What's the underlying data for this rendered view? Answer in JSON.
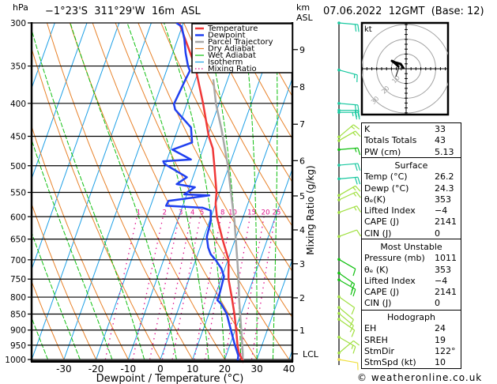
{
  "header": {
    "pressure_unit": "hPa",
    "location": "−1°23'S  311°29'W  16m  ASL",
    "height_unit_line1": "km",
    "height_unit_line2": "ASL",
    "datetime": "07.06.2022  12GMT  (Base: 12)"
  },
  "colors": {
    "temperature": "#f03838",
    "dewpoint": "#2040f0",
    "parcel": "#a8a8a8",
    "dry_adiabat": "#e8822a",
    "wet_adiabat": "#10c010",
    "isotherm": "#1ea0e6",
    "mixing_ratio": "#e0108c",
    "teal": "#18c8a0",
    "yellowgreen": "#a0e040",
    "green": "#10c010",
    "yellow": "#f0e040",
    "hodo_ring": "#a0a0a0"
  },
  "chart_data": {
    "type": "line",
    "subtype": "skew-T log-P",
    "title": "−1°23'S  311°29'W  16m  ASL",
    "xlabel": "Dewpoint / Temperature (°C)",
    "ylabel": "hPa",
    "y2label": "Mixing Ratio (g/kg)",
    "xlim": [
      -40,
      41
    ],
    "ylim": [
      1000,
      300
    ],
    "grid": true,
    "x_ticks": [
      -30,
      -20,
      -10,
      0,
      10,
      20,
      30,
      40
    ],
    "pressure_levels": [
      300,
      350,
      400,
      450,
      500,
      550,
      600,
      650,
      700,
      750,
      800,
      850,
      900,
      950,
      1000
    ],
    "height_ticks": [
      {
        "label": "9",
        "pressure": 330
      },
      {
        "label": "8",
        "pressure": 377
      },
      {
        "label": "7",
        "pressure": 431
      },
      {
        "label": "6",
        "pressure": 491
      },
      {
        "label": "5",
        "pressure": 557
      },
      {
        "label": "4",
        "pressure": 629
      },
      {
        "label": "3",
        "pressure": 710
      },
      {
        "label": "2",
        "pressure": 802
      },
      {
        "label": "1",
        "pressure": 901
      },
      {
        "label": "LCL",
        "pressure": 980
      }
    ],
    "legend_position": "top-right",
    "legend": [
      {
        "label": "Temperature",
        "key": "temperature",
        "style": "solid-thick"
      },
      {
        "label": "Dewpoint",
        "key": "dewpoint",
        "style": "solid-thick"
      },
      {
        "label": "Parcel Trajectory",
        "key": "parcel",
        "style": "solid-thick"
      },
      {
        "label": "Dry Adiabat",
        "key": "dry_adiabat",
        "style": "solid"
      },
      {
        "label": "Wet Adiabat",
        "key": "wet_adiabat",
        "style": "solid"
      },
      {
        "label": "Isotherm",
        "key": "isotherm",
        "style": "solid"
      },
      {
        "label": "Mixing Ratio",
        "key": "mixing_ratio",
        "style": "dotted"
      }
    ],
    "series": [
      {
        "name": "Temperature",
        "key": "temperature",
        "points": [
          [
            1011,
            26.2
          ],
          [
            1000,
            25.4
          ],
          [
            975,
            23.6
          ],
          [
            950,
            22.4
          ],
          [
            900,
            20.3
          ],
          [
            850,
            18.0
          ],
          [
            800,
            15.3
          ],
          [
            750,
            12.3
          ],
          [
            700,
            10.2
          ],
          [
            650,
            6.0
          ],
          [
            600,
            1.8
          ],
          [
            573,
            0.0
          ],
          [
            550,
            -1.0
          ],
          [
            500,
            -4.6
          ],
          [
            470,
            -7.0
          ],
          [
            450,
            -9.6
          ],
          [
            400,
            -15.0
          ],
          [
            350,
            -21.6
          ],
          [
            300,
            -31.3
          ]
        ]
      },
      {
        "name": "Dewpoint",
        "key": "dewpoint",
        "points": [
          [
            1011,
            24.3
          ],
          [
            986,
            23.8
          ],
          [
            945,
            21.3
          ],
          [
            897,
            18.5
          ],
          [
            848,
            15.5
          ],
          [
            820,
            12.8
          ],
          [
            809,
            11.2
          ],
          [
            786,
            11.1
          ],
          [
            743,
            10.6
          ],
          [
            722,
            8.9
          ],
          [
            702,
            6.4
          ],
          [
            686,
            4.0
          ],
          [
            670,
            2.5
          ],
          [
            645,
            0.9
          ],
          [
            610,
            0.4
          ],
          [
            587,
            -0.8
          ],
          [
            581,
            -3.6
          ],
          [
            577,
            -15.2
          ],
          [
            567,
            -15.0
          ],
          [
            556,
            -2.9
          ],
          [
            554,
            -10.8
          ],
          [
            540,
            -8.3
          ],
          [
            534,
            -14.3
          ],
          [
            521,
            -11.9
          ],
          [
            497,
            -20.3
          ],
          [
            492,
            -21.0
          ],
          [
            489,
            -12.6
          ],
          [
            472,
            -19.4
          ],
          [
            460,
            -14.1
          ],
          [
            436,
            -16.1
          ],
          [
            409,
            -23.0
          ],
          [
            401,
            -24.0
          ],
          [
            367,
            -23.1
          ],
          [
            356,
            -22.7
          ],
          [
            350,
            -23.8
          ],
          [
            334,
            -26.0
          ],
          [
            318,
            -27.9
          ],
          [
            304,
            -30.1
          ],
          [
            300,
            -32.2
          ]
        ]
      },
      {
        "name": "Parcel Trajectory",
        "key": "parcel",
        "points": [
          [
            1011,
            26.2
          ],
          [
            1000,
            25.6
          ],
          [
            980,
            25.0
          ],
          [
            850,
            19.8
          ],
          [
            810,
            18.0
          ],
          [
            743,
            15.1
          ],
          [
            610,
            7.8
          ],
          [
            565,
            4.6
          ],
          [
            500,
            -0.4
          ],
          [
            438,
            -6.5
          ],
          [
            401,
            -10.9
          ],
          [
            367,
            -14.5
          ]
        ]
      }
    ],
    "background": {
      "isotherms_degC": [
        -80,
        -70,
        -60,
        -50,
        -40,
        -30,
        -20,
        -10,
        0,
        10,
        20,
        30,
        40
      ],
      "dry_adiabats_degC": [
        -40,
        -30,
        -20,
        -10,
        0,
        10,
        20,
        30,
        40,
        50,
        60,
        70,
        80,
        90,
        100,
        110,
        120
      ],
      "wet_adiabats_degC": [
        -35,
        -25,
        -15,
        -5,
        5,
        15,
        20,
        25,
        30,
        35
      ],
      "mixing_ratios_gkg": [
        1,
        2,
        3,
        4,
        5,
        8,
        10,
        15,
        20,
        25
      ],
      "mixing_ratio_top_hPa": 600
    },
    "wind_barbs": [
      {
        "p": 300,
        "dir": 95,
        "spd": 20,
        "color": "teal"
      },
      {
        "p": 355,
        "dir": 105,
        "spd": 15,
        "color": "teal"
      },
      {
        "p": 400,
        "dir": 95,
        "spd": 20,
        "color": "teal"
      },
      {
        "p": 410,
        "dir": 90,
        "spd": 20,
        "color": "teal"
      },
      {
        "p": 413,
        "dir": 90,
        "spd": 25,
        "color": "teal"
      },
      {
        "p": 451,
        "dir": 50,
        "spd": 15,
        "color": "yellowgreen"
      },
      {
        "p": 457,
        "dir": 60,
        "spd": 15,
        "color": "yellowgreen"
      },
      {
        "p": 472,
        "dir": 85,
        "spd": 15,
        "color": "green"
      },
      {
        "p": 499,
        "dir": 85,
        "spd": 20,
        "color": "teal"
      },
      {
        "p": 524,
        "dir": 85,
        "spd": 20,
        "color": "teal"
      },
      {
        "p": 556,
        "dir": 60,
        "spd": 15,
        "color": "yellowgreen"
      },
      {
        "p": 565,
        "dir": 65,
        "spd": 15,
        "color": "yellowgreen"
      },
      {
        "p": 591,
        "dir": 70,
        "spd": 15,
        "color": "yellowgreen"
      },
      {
        "p": 644,
        "dir": 70,
        "spd": 10,
        "color": "yellowgreen"
      },
      {
        "p": 699,
        "dir": 120,
        "spd": 10,
        "color": "green"
      },
      {
        "p": 734,
        "dir": 125,
        "spd": 15,
        "color": "green"
      },
      {
        "p": 752,
        "dir": 120,
        "spd": 20,
        "color": "green"
      },
      {
        "p": 799,
        "dir": 125,
        "spd": 10,
        "color": "yellowgreen"
      },
      {
        "p": 830,
        "dir": 130,
        "spd": 10,
        "color": "yellowgreen"
      },
      {
        "p": 848,
        "dir": 130,
        "spd": 10,
        "color": "yellowgreen"
      },
      {
        "p": 866,
        "dir": 125,
        "spd": 10,
        "color": "yellowgreen"
      },
      {
        "p": 923,
        "dir": 120,
        "spd": 15,
        "color": "yellowgreen"
      },
      {
        "p": 977,
        "dir": 50,
        "spd": 10,
        "color": "yellowgreen"
      },
      {
        "p": 1000,
        "dir": 100,
        "spd": 10,
        "color": "yellow"
      }
    ],
    "hodograph": {
      "unit_label": "kt",
      "rings_kt": [
        10,
        20,
        30
      ],
      "ring_labels": [
        "10",
        "20",
        "30"
      ],
      "trace_kt": [
        [
          -1.6,
          0.0
        ],
        [
          -3.7,
          3.2
        ],
        [
          -7.5,
          4.3
        ],
        [
          -9.6,
          5.3
        ],
        [
          -7.5,
          3.7
        ],
        [
          -4.8,
          1.1
        ]
      ],
      "storm_motion_kt": [
        -7.0,
        -5.3
      ]
    }
  },
  "indices": {
    "rows": [
      {
        "label": "K",
        "value": "33"
      },
      {
        "label": "Totals Totals",
        "value": "43"
      },
      {
        "label": "PW (cm)",
        "value": "5.13"
      }
    ]
  },
  "surface": {
    "title": "Surface",
    "rows": [
      {
        "label": "Temp (°C)",
        "value": "26.2"
      },
      {
        "label": "Dewp (°C)",
        "value": "24.3"
      },
      {
        "label": "θₑ(K)",
        "value": "353"
      },
      {
        "label": "Lifted Index",
        "value": "−4"
      },
      {
        "label": "CAPE (J)",
        "value": "2141"
      },
      {
        "label": "CIN (J)",
        "value": "0"
      }
    ]
  },
  "most_unstable": {
    "title": "Most Unstable",
    "rows": [
      {
        "label": "Pressure (mb)",
        "value": "1011"
      },
      {
        "label": "θₑ (K)",
        "value": "353"
      },
      {
        "label": "Lifted Index",
        "value": "−4"
      },
      {
        "label": "CAPE (J)",
        "value": "2141"
      },
      {
        "label": "CIN (J)",
        "value": "0"
      }
    ]
  },
  "hodograph_table": {
    "title": "Hodograph",
    "rows": [
      {
        "label": "EH",
        "value": "24"
      },
      {
        "label": "SREH",
        "value": "19"
      },
      {
        "label": "StmDir",
        "value": "122°"
      },
      {
        "label": "StmSpd (kt)",
        "value": "10"
      }
    ]
  },
  "footer": {
    "copyright": "© weatheronline.co.uk"
  }
}
